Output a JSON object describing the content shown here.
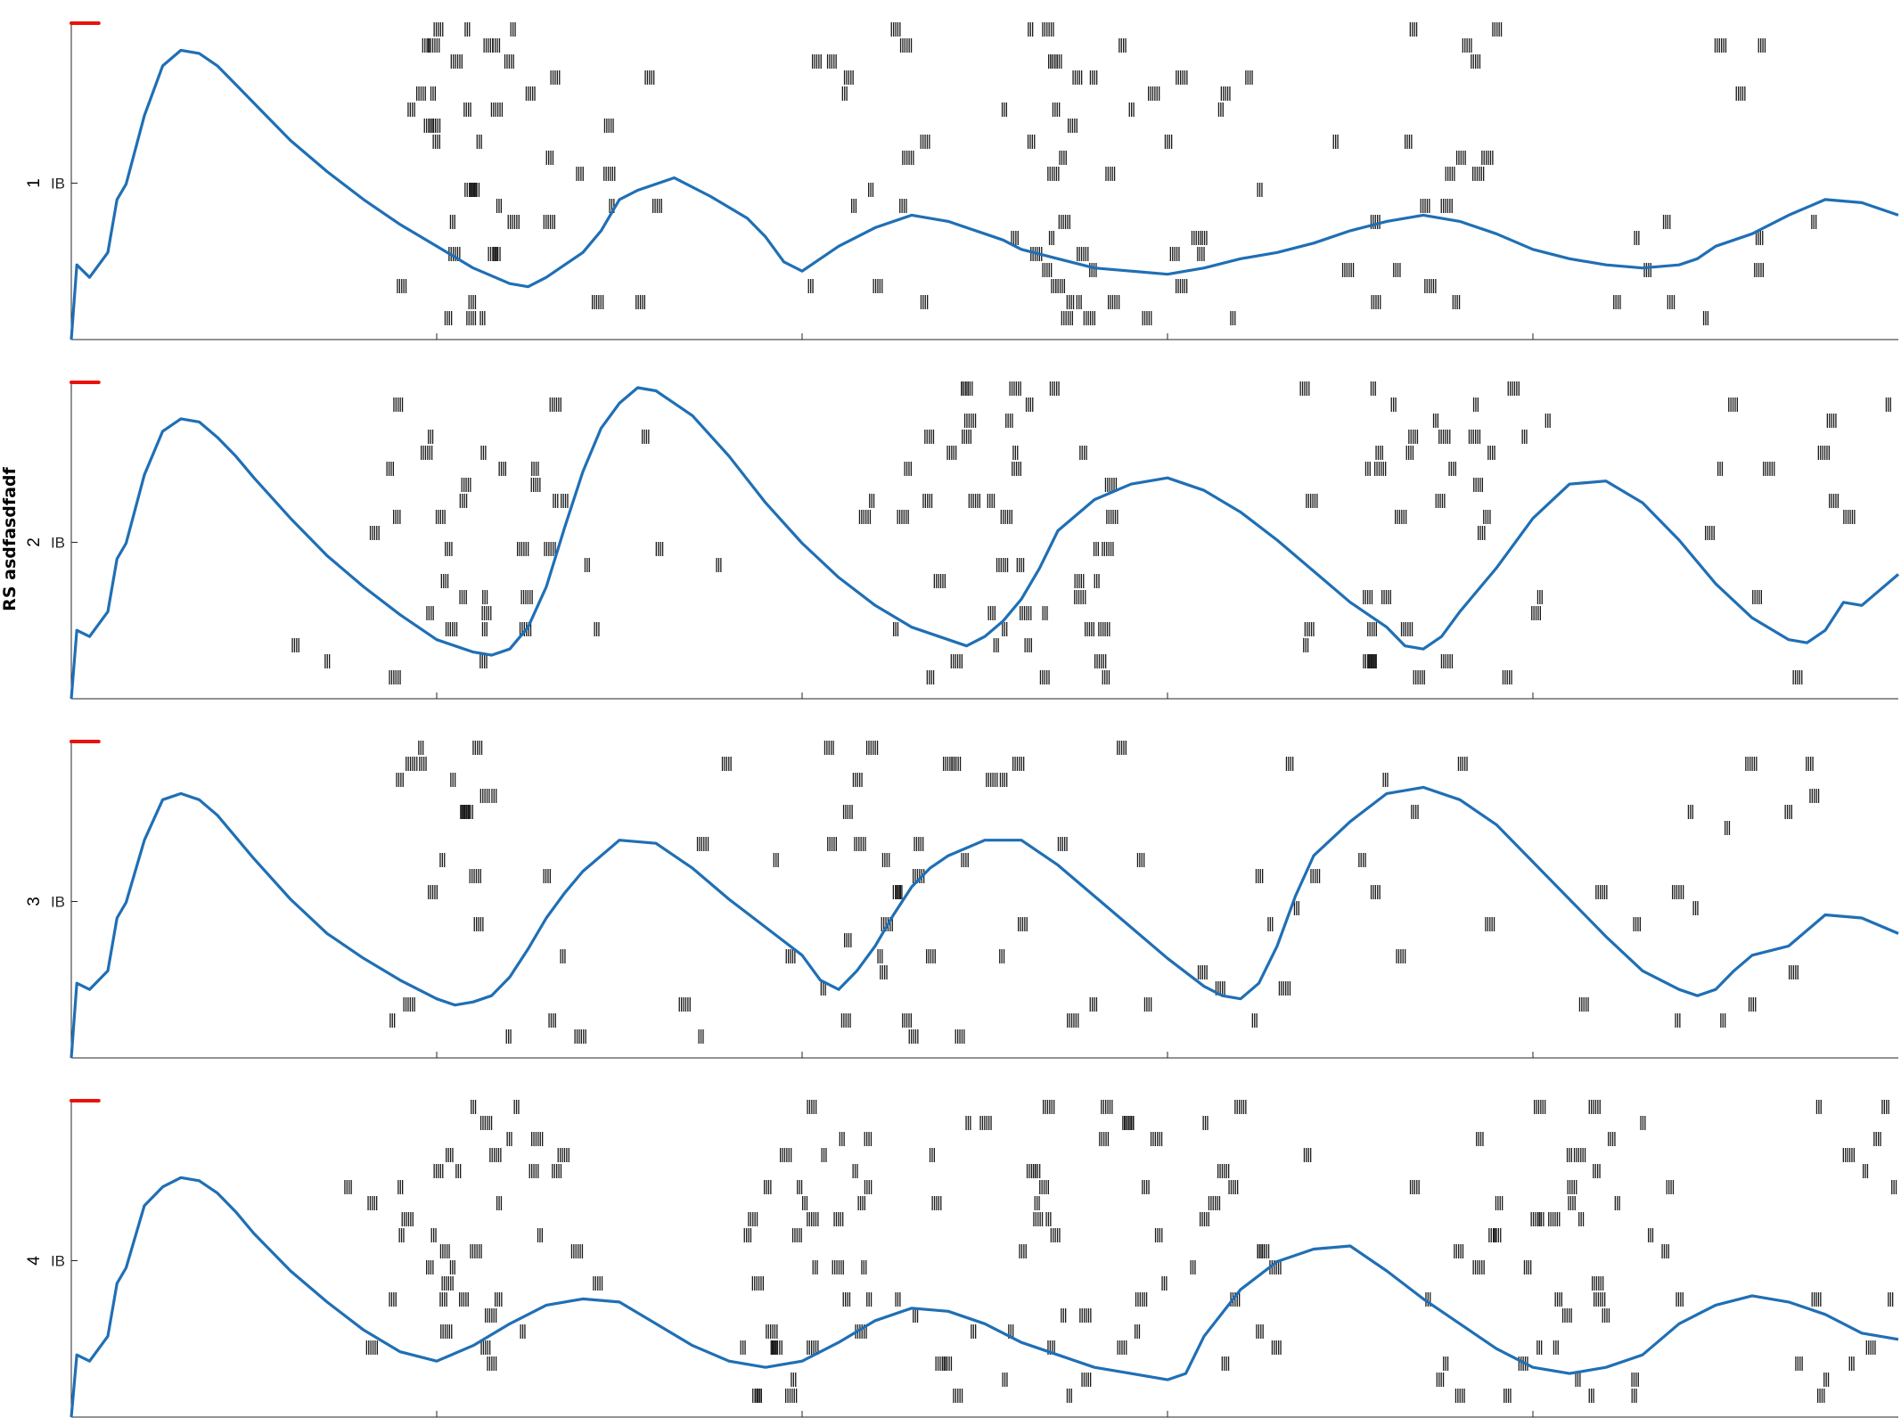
{
  "figure": {
    "ylabel": "RS asdfasdfadf",
    "colors": {
      "trace": "#1f6fb5",
      "spike": "#1a1a1a",
      "stim": "#e8130c",
      "axis": "#262626"
    }
  },
  "chart_data": [
    {
      "type": "line",
      "panel": "1",
      "ytick_label": "IB",
      "xlim": [
        0,
        100
      ],
      "ylim": [
        0,
        1
      ],
      "stim_marker": [
        0,
        1.5
      ],
      "trace": {
        "x": [
          0,
          0.3,
          1,
          2,
          2.5,
          3,
          4,
          5,
          6,
          7,
          8,
          9,
          10,
          12,
          14,
          16,
          18,
          20,
          22,
          24,
          25,
          26,
          27,
          28,
          29,
          30,
          31,
          32,
          33,
          35,
          37,
          38,
          39,
          40,
          42,
          44,
          46,
          48,
          49,
          50,
          51,
          52,
          54,
          56,
          58,
          60,
          62,
          64,
          66,
          68,
          70,
          72,
          74,
          76,
          78,
          80,
          82,
          84,
          86,
          88,
          89,
          90,
          92,
          94,
          96,
          98,
          100
        ],
        "y": [
          0,
          0.24,
          0.2,
          0.28,
          0.45,
          0.5,
          0.72,
          0.88,
          0.93,
          0.92,
          0.88,
          0.82,
          0.76,
          0.64,
          0.54,
          0.45,
          0.37,
          0.3,
          0.23,
          0.18,
          0.17,
          0.2,
          0.24,
          0.28,
          0.35,
          0.45,
          0.48,
          0.5,
          0.52,
          0.46,
          0.39,
          0.33,
          0.25,
          0.22,
          0.3,
          0.36,
          0.4,
          0.38,
          0.36,
          0.34,
          0.32,
          0.29,
          0.26,
          0.23,
          0.22,
          0.21,
          0.23,
          0.26,
          0.28,
          0.31,
          0.35,
          0.38,
          0.4,
          0.38,
          0.34,
          0.29,
          0.26,
          0.24,
          0.23,
          0.24,
          0.26,
          0.3,
          0.34,
          0.4,
          0.45,
          0.44,
          0.4
        ]
      },
      "bursts": [
        [
          21,
          3
        ],
        [
          25,
          7
        ],
        [
          43,
          5
        ],
        [
          54,
          3
        ],
        [
          61,
          4
        ],
        [
          74,
          4
        ],
        [
          90,
          5
        ]
      ]
    },
    {
      "type": "line",
      "panel": "2",
      "ytick_label": "IB",
      "xlim": [
        0,
        100
      ],
      "ylim": [
        0,
        1
      ],
      "stim_marker": [
        0,
        1.5
      ],
      "trace": {
        "x": [
          0,
          0.3,
          1,
          2,
          2.5,
          3,
          4,
          5,
          6,
          7,
          8,
          9,
          10,
          12,
          14,
          16,
          18,
          20,
          21,
          22,
          23,
          24,
          25,
          26,
          27,
          28,
          29,
          30,
          31,
          32,
          34,
          36,
          38,
          40,
          42,
          44,
          46,
          48,
          49,
          50,
          51,
          52,
          53,
          54,
          56,
          58,
          60,
          62,
          64,
          66,
          68,
          70,
          72,
          73,
          74,
          75,
          76,
          78,
          80,
          82,
          84,
          86,
          88,
          90,
          92,
          94,
          95,
          96,
          97,
          98,
          100
        ],
        "y": [
          0,
          0.22,
          0.2,
          0.28,
          0.45,
          0.5,
          0.72,
          0.86,
          0.9,
          0.89,
          0.84,
          0.78,
          0.71,
          0.58,
          0.46,
          0.36,
          0.27,
          0.19,
          0.17,
          0.15,
          0.14,
          0.16,
          0.23,
          0.36,
          0.55,
          0.73,
          0.87,
          0.95,
          1.0,
          0.99,
          0.91,
          0.78,
          0.63,
          0.5,
          0.39,
          0.3,
          0.23,
          0.19,
          0.17,
          0.2,
          0.25,
          0.32,
          0.42,
          0.54,
          0.64,
          0.69,
          0.71,
          0.67,
          0.6,
          0.51,
          0.41,
          0.31,
          0.23,
          0.17,
          0.16,
          0.2,
          0.28,
          0.42,
          0.58,
          0.69,
          0.7,
          0.63,
          0.51,
          0.37,
          0.26,
          0.19,
          0.18,
          0.22,
          0.31,
          0.3,
          0.4
        ]
      },
      "bursts": [
        [
          21,
          5
        ],
        [
          24,
          10
        ],
        [
          50,
          8
        ],
        [
          52,
          6
        ],
        [
          73,
          7
        ],
        [
          76,
          5
        ],
        [
          95,
          6
        ]
      ]
    },
    {
      "type": "line",
      "panel": "3",
      "ytick_label": "IB",
      "xlim": [
        0,
        100
      ],
      "ylim": [
        0,
        1
      ],
      "stim_marker": [
        0,
        1.5
      ],
      "trace": {
        "x": [
          0,
          0.3,
          1,
          2,
          2.5,
          3,
          4,
          5,
          6,
          7,
          8,
          9,
          10,
          12,
          14,
          16,
          18,
          20,
          21,
          22,
          23,
          24,
          25,
          26,
          27,
          28,
          30,
          32,
          34,
          36,
          38,
          40,
          41,
          42,
          43,
          44,
          45,
          46,
          47,
          48,
          50,
          52,
          54,
          56,
          58,
          60,
          62,
          63,
          64,
          65,
          66,
          67,
          68,
          70,
          72,
          74,
          76,
          78,
          80,
          82,
          84,
          86,
          88,
          89,
          90,
          91,
          92,
          94,
          96,
          98,
          100
        ],
        "y": [
          0,
          0.24,
          0.22,
          0.28,
          0.45,
          0.5,
          0.7,
          0.83,
          0.85,
          0.83,
          0.78,
          0.71,
          0.64,
          0.51,
          0.4,
          0.32,
          0.25,
          0.19,
          0.17,
          0.18,
          0.2,
          0.26,
          0.35,
          0.45,
          0.53,
          0.6,
          0.7,
          0.69,
          0.61,
          0.51,
          0.42,
          0.33,
          0.25,
          0.22,
          0.28,
          0.36,
          0.46,
          0.55,
          0.61,
          0.65,
          0.7,
          0.7,
          0.62,
          0.52,
          0.42,
          0.32,
          0.23,
          0.2,
          0.19,
          0.24,
          0.36,
          0.52,
          0.65,
          0.76,
          0.85,
          0.87,
          0.83,
          0.75,
          0.63,
          0.51,
          0.39,
          0.28,
          0.22,
          0.2,
          0.22,
          0.28,
          0.33,
          0.36,
          0.46,
          0.45,
          0.4
        ]
      },
      "bursts": [
        [
          22,
          6
        ],
        [
          42,
          8
        ],
        [
          46,
          5
        ],
        [
          66,
          10
        ],
        [
          89,
          6
        ]
      ]
    },
    {
      "type": "line",
      "panel": "4",
      "ytick_label": "IB",
      "xlim": [
        0,
        100
      ],
      "ylim": [
        0,
        1
      ],
      "stim_marker": [
        0,
        1.5
      ],
      "trace": {
        "x": [
          0,
          0.3,
          1,
          2,
          2.5,
          3,
          4,
          5,
          6,
          7,
          8,
          9,
          10,
          12,
          14,
          16,
          18,
          20,
          22,
          24,
          26,
          28,
          30,
          32,
          34,
          36,
          38,
          40,
          42,
          44,
          46,
          48,
          50,
          52,
          54,
          56,
          58,
          60,
          61,
          62,
          64,
          66,
          68,
          70,
          72,
          74,
          76,
          78,
          80,
          82,
          84,
          86,
          88,
          90,
          92,
          94,
          96,
          98,
          100
        ],
        "y": [
          0,
          0.2,
          0.18,
          0.26,
          0.43,
          0.48,
          0.68,
          0.74,
          0.77,
          0.76,
          0.72,
          0.66,
          0.59,
          0.47,
          0.37,
          0.28,
          0.21,
          0.18,
          0.23,
          0.3,
          0.36,
          0.38,
          0.37,
          0.3,
          0.23,
          0.18,
          0.16,
          0.18,
          0.24,
          0.31,
          0.35,
          0.34,
          0.3,
          0.24,
          0.2,
          0.16,
          0.14,
          0.12,
          0.14,
          0.26,
          0.41,
          0.5,
          0.54,
          0.55,
          0.47,
          0.38,
          0.3,
          0.22,
          0.16,
          0.14,
          0.16,
          0.2,
          0.3,
          0.36,
          0.39,
          0.37,
          0.33,
          0.27,
          0.25
        ]
      },
      "bursts": [
        [
          20,
          6
        ],
        [
          24,
          4
        ],
        [
          40,
          4
        ],
        [
          44,
          6
        ],
        [
          55,
          4
        ],
        [
          61,
          7
        ],
        [
          78,
          5
        ],
        [
          84,
          4
        ],
        [
          97,
          4
        ]
      ]
    }
  ]
}
